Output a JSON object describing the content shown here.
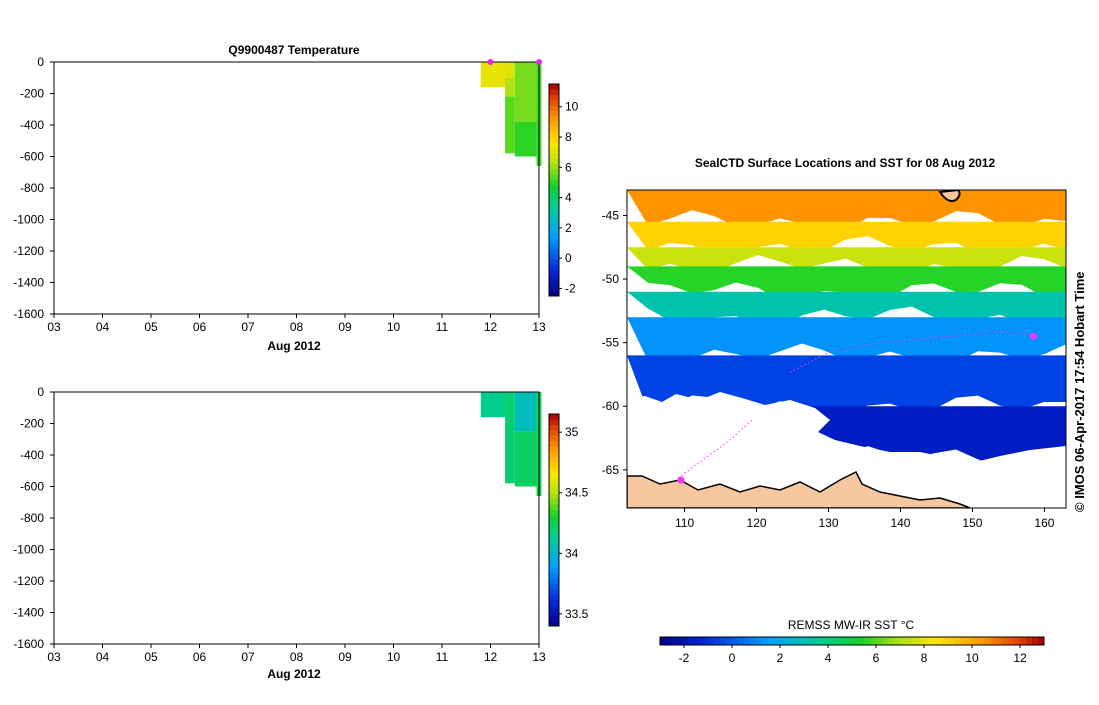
{
  "chart_data": [
    {
      "type": "heatmap",
      "title": "Q9900487  Temperature",
      "xlabel": "Aug 2012",
      "x_ticks": [
        "03",
        "04",
        "05",
        "06",
        "07",
        "08",
        "09",
        "10",
        "11",
        "12",
        "13"
      ],
      "y_ticks": [
        "0",
        "-200",
        "-400",
        "-600",
        "-800",
        "-1000",
        "-1200",
        "-1400",
        "-1600"
      ],
      "xlim": [
        3,
        13
      ],
      "ylim": [
        -1600,
        0
      ],
      "colorbar_ticks": [
        "-2",
        "0",
        "2",
        "4",
        "6",
        "8",
        "10"
      ],
      "colorbar_range": [
        -2.5,
        11.5
      ],
      "cells": [
        {
          "x0": 11.8,
          "x1": 12.3,
          "y0": 0,
          "y1": -160,
          "value": 7.2
        },
        {
          "x0": 12.3,
          "x1": 12.5,
          "y0": 0,
          "y1": -100,
          "value": 7.0
        },
        {
          "x0": 12.3,
          "x1": 12.5,
          "y0": -100,
          "y1": -220,
          "value": 6.3
        },
        {
          "x0": 12.3,
          "x1": 12.5,
          "y0": -220,
          "y1": -580,
          "value": 5.4
        },
        {
          "x0": 12.5,
          "x1": 12.95,
          "y0": 0,
          "y1": -380,
          "value": 5.7
        },
        {
          "x0": 12.5,
          "x1": 12.95,
          "y0": -380,
          "y1": -600,
          "value": 5.0
        },
        {
          "x0": 12.95,
          "x1": 13.05,
          "y0": 0,
          "y1": -660,
          "value": 5.2
        }
      ],
      "markers": [
        {
          "x": 12.0,
          "y": 0
        },
        {
          "x": 13.0,
          "y": 0
        }
      ]
    },
    {
      "type": "heatmap",
      "title": "",
      "xlabel": "Aug 2012",
      "x_ticks": [
        "03",
        "04",
        "05",
        "06",
        "07",
        "08",
        "09",
        "10",
        "11",
        "12",
        "13"
      ],
      "y_ticks": [
        "0",
        "-200",
        "-400",
        "-600",
        "-800",
        "-1000",
        "-1200",
        "-1400",
        "-1600"
      ],
      "xlim": [
        3,
        13
      ],
      "ylim": [
        -1600,
        0
      ],
      "colorbar_ticks": [
        "33.5",
        "34",
        "34.5",
        "35"
      ],
      "colorbar_range": [
        33.4,
        35.15
      ],
      "cells": [
        {
          "x0": 11.8,
          "x1": 12.3,
          "y0": 0,
          "y1": -160,
          "value": 34.15
        },
        {
          "x0": 12.3,
          "x1": 12.5,
          "y0": 0,
          "y1": -580,
          "value": 34.2
        },
        {
          "x0": 12.5,
          "x1": 12.95,
          "y0": 0,
          "y1": -250,
          "value": 34.05
        },
        {
          "x0": 12.5,
          "x1": 12.95,
          "y0": -250,
          "y1": -600,
          "value": 34.22
        },
        {
          "x0": 12.95,
          "x1": 13.05,
          "y0": 0,
          "y1": -660,
          "value": 34.25
        }
      ]
    },
    {
      "type": "heatmap",
      "title": "SealCTD Surface Locations and SST for 08 Aug 2012",
      "x_ticks": [
        "110",
        "120",
        "130",
        "140",
        "150",
        "160"
      ],
      "y_ticks": [
        "-45",
        "-50",
        "-55",
        "-60",
        "-65"
      ],
      "xlim": [
        102,
        163
      ],
      "ylim": [
        -68,
        -43
      ],
      "colorbar_label": "REMSS MW-IR SST °C",
      "colorbar_ticks": [
        "-2",
        "0",
        "2",
        "4",
        "6",
        "8",
        "10",
        "12"
      ],
      "colorbar_range": [
        -3,
        13
      ],
      "sst_bands": [
        {
          "lat_top": -43,
          "lat_bot": -45.5,
          "value": 10.5
        },
        {
          "lat_top": -45.5,
          "lat_bot": -47.5,
          "value": 9.0
        },
        {
          "lat_top": -47.5,
          "lat_bot": -49,
          "value": 7.5
        },
        {
          "lat_top": -49,
          "lat_bot": -51,
          "value": 5.5
        },
        {
          "lat_top": -51,
          "lat_bot": -53,
          "value": 3.2
        },
        {
          "lat_top": -53,
          "lat_bot": -56,
          "value": 1.2
        },
        {
          "lat_top": -56,
          "lat_bot": -60,
          "value": -0.5
        },
        {
          "lat_top": -60,
          "lat_bot": -64,
          "value": -1.6
        }
      ],
      "seal_positions": [
        {
          "lon": 158.5,
          "lat": -54.5
        },
        {
          "lon": 109.5,
          "lat": -65.8
        }
      ],
      "credit": "© IMOS 06-Apr-2017 17:54 Hobart Time"
    }
  ]
}
